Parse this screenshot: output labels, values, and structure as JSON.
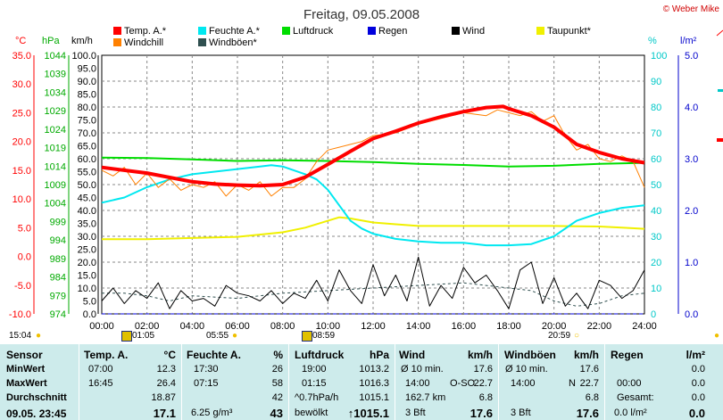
{
  "chart_data": {
    "type": "line",
    "title": "Freitag, 09.05.2008",
    "credit": "© Weber Mike",
    "legend": [
      {
        "name": "Temp. A.*",
        "color": "#ff0000"
      },
      {
        "name": "Feuchte A.*",
        "color": "#00e8f0"
      },
      {
        "name": "Luftdruck",
        "color": "#00dd00"
      },
      {
        "name": "Regen",
        "color": "#0000dd"
      },
      {
        "name": "Wind",
        "color": "#000000"
      },
      {
        "name": "Taupunkt*",
        "color": "#f0f000"
      },
      {
        "name": "Windchill",
        "color": "#ff8000"
      },
      {
        "name": "Windböen*",
        "color": "#2f4f4f"
      }
    ],
    "axes": {
      "temp": {
        "label": "°C",
        "range": [
          -10,
          35
        ],
        "ticks": [
          "35.0",
          "30.0",
          "25.0",
          "20.0",
          "15.0",
          "10.0",
          "5.0",
          "0.0",
          "-5.0",
          "-10.0"
        ],
        "color": "#ff0000"
      },
      "pressure": {
        "label": "hPa",
        "range": [
          974,
          1044
        ],
        "ticks": [
          "1044",
          "1039",
          "1034",
          "1029",
          "1024",
          "1019",
          "1014",
          "1009",
          "1004",
          "999",
          "994",
          "989",
          "984",
          "979",
          "974"
        ],
        "color": "#00aa00"
      },
      "wind": {
        "label": "km/h",
        "range": [
          0,
          100
        ],
        "ticks": [
          "100.0",
          "95.0",
          "90.0",
          "85.0",
          "80.0",
          "75.0",
          "70.0",
          "65.0",
          "60.0",
          "55.0",
          "50.0",
          "45.0",
          "40.0",
          "35.0",
          "30.0",
          "25.0",
          "20.0",
          "15.0",
          "10.0",
          "5.0",
          "0.0"
        ],
        "color": "#000000"
      },
      "humidity": {
        "label": "%",
        "range": [
          0,
          100
        ],
        "ticks": [
          "100",
          "90",
          "80",
          "70",
          "60",
          "50",
          "40",
          "30",
          "20",
          "10",
          "0"
        ],
        "color": "#00c8c8"
      },
      "rain": {
        "label": "l/m²",
        "range": [
          0,
          5
        ],
        "ticks": [
          "5.0",
          "4.0",
          "3.0",
          "2.0",
          "1.0",
          "0.0"
        ],
        "color": "#0000cc"
      },
      "x": {
        "range": [
          0,
          24
        ],
        "ticks": [
          "00:00",
          "02:00",
          "04:00",
          "06:00",
          "08:00",
          "10:00",
          "12:00",
          "14:00",
          "16:00",
          "18:00",
          "20:00",
          "22:00",
          "24:00"
        ]
      }
    },
    "series": [
      {
        "name": "Temp. A.*",
        "axis": "temp",
        "x": [
          0,
          2,
          4,
          5,
          6,
          7,
          8,
          9,
          10,
          11,
          12,
          13,
          14,
          15,
          16,
          17,
          17.75,
          18,
          19,
          20,
          21,
          22,
          23,
          24
        ],
        "values": [
          15.5,
          14.5,
          13.0,
          12.6,
          12.4,
          12.3,
          12.5,
          13.8,
          16.0,
          18.3,
          20.5,
          21.8,
          23.2,
          24.3,
          25.2,
          25.9,
          26.1,
          25.7,
          24.5,
          22.5,
          19.5,
          18.1,
          17.0,
          16.3
        ]
      },
      {
        "name": "Windchill",
        "axis": "temp",
        "x": [
          0,
          0.5,
          1,
          1.5,
          2,
          2.5,
          3,
          3.5,
          4,
          4.5,
          5,
          5.5,
          6,
          6.5,
          7,
          7.5,
          8,
          8.5,
          9,
          9.5,
          10,
          10.5,
          11,
          11.5,
          12,
          13,
          14,
          15,
          16,
          17,
          17.5,
          18,
          18.5,
          19,
          19.5,
          20,
          20.5,
          21,
          21.5,
          22,
          22.5,
          23,
          23.5,
          24
        ],
        "values": [
          15.0,
          14.0,
          15.5,
          12.5,
          14.5,
          12.0,
          13.5,
          11.5,
          12.5,
          12.0,
          13.0,
          10.5,
          12.5,
          11.5,
          13.0,
          10.5,
          12.0,
          12.0,
          13.5,
          16.5,
          18.5,
          19.0,
          19.5,
          20.0,
          21.0,
          21.5,
          23.0,
          24.0,
          25.0,
          24.5,
          25.5,
          25.0,
          24.5,
          25.2,
          23.5,
          24.5,
          21.0,
          18.5,
          19.5,
          17.0,
          16.5,
          17.5,
          16.5,
          12.0
        ]
      },
      {
        "name": "Feuchte A.*",
        "axis": "humidity",
        "x": [
          0,
          1,
          2,
          3,
          4,
          5,
          6,
          7,
          7.5,
          8,
          9,
          9.5,
          10,
          10.5,
          11,
          11.5,
          12,
          13,
          14,
          15,
          16,
          17,
          18,
          19,
          20,
          20.5,
          21,
          22,
          23,
          24
        ],
        "values": [
          43,
          45,
          49,
          52,
          54,
          55,
          56,
          57,
          57.5,
          57,
          54,
          52,
          48,
          42,
          36,
          33,
          31,
          29,
          28,
          27.5,
          27.5,
          26.5,
          26.5,
          27,
          30,
          33,
          36,
          39,
          41,
          42
        ]
      },
      {
        "name": "Luftdruck",
        "axis": "pressure",
        "x": [
          0,
          2,
          4,
          6,
          8,
          10,
          12,
          14,
          16,
          18,
          20,
          22,
          24
        ],
        "values": [
          1016.3,
          1016.2,
          1015.8,
          1015.4,
          1015.6,
          1015.4,
          1015.1,
          1014.6,
          1014.3,
          1013.9,
          1014.1,
          1014.6,
          1014.9
        ]
      },
      {
        "name": "Taupunkt*",
        "axis": "temp",
        "x": [
          0,
          2,
          4,
          6,
          8,
          9,
          10,
          10.5,
          11,
          12,
          13,
          14,
          16,
          18,
          20,
          22,
          23,
          24
        ],
        "values": [
          3.0,
          3.0,
          3.2,
          3.4,
          4.2,
          5.0,
          6.2,
          6.8,
          6.6,
          5.9,
          5.6,
          5.3,
          5.3,
          5.3,
          5.3,
          5.2,
          5.0,
          4.8
        ]
      },
      {
        "name": "Regen",
        "axis": "rain",
        "x": [
          0,
          24
        ],
        "values": [
          0.0,
          0.0
        ]
      },
      {
        "name": "Wind",
        "axis": "wind",
        "x": [
          0,
          0.5,
          1,
          1.5,
          2,
          2.5,
          3,
          3.5,
          4,
          4.5,
          5,
          5.5,
          6,
          6.5,
          7,
          7.5,
          8,
          8.5,
          9,
          9.5,
          10,
          10.5,
          11,
          11.5,
          12,
          12.5,
          13,
          13.5,
          14,
          14.5,
          15,
          15.5,
          16,
          16.5,
          17,
          17.5,
          18,
          18.5,
          19,
          19.5,
          20,
          20.5,
          21,
          21.5,
          22,
          22.5,
          23,
          23.5,
          24
        ],
        "values": [
          5,
          10,
          4,
          9,
          6,
          12,
          2,
          9,
          5,
          6,
          3,
          11,
          8,
          7,
          5,
          9,
          4,
          8,
          6,
          13,
          5,
          17,
          9,
          4,
          19,
          7,
          15,
          5,
          22,
          3,
          11,
          6,
          18,
          12,
          15,
          9,
          2,
          17,
          20,
          4,
          14,
          3,
          8,
          2,
          13,
          11,
          6,
          9,
          17
        ]
      },
      {
        "name": "Windböen*",
        "axis": "wind",
        "x": [
          0,
          1,
          2,
          3,
          4,
          6,
          8,
          10,
          12,
          14,
          16,
          18,
          19,
          20,
          21,
          22,
          23,
          24
        ],
        "values": [
          8,
          8,
          7,
          5,
          7,
          6,
          8,
          9,
          10,
          11,
          12,
          10,
          9,
          5,
          3,
          4,
          7,
          8
        ]
      }
    ],
    "grid": true,
    "legend_position": "top",
    "markers": {
      "sunrise": "05:55",
      "sunset": "20:59",
      "moonrise": "01:05",
      "moonset": "08:59",
      "left_time": "15:04"
    }
  },
  "table": {
    "columns": [
      {
        "header": "Sensor",
        "unit": "",
        "rows": [
          "MinWert",
          "MaxWert",
          "Durchschnitt",
          "09.05. 23:45"
        ]
      },
      {
        "header": "Temp. A.",
        "unit": "°C",
        "rows": [
          [
            "07:00",
            "12.3"
          ],
          [
            "16:45",
            "26.4"
          ],
          [
            "",
            "18.87"
          ],
          [
            "",
            "17.1"
          ]
        ]
      },
      {
        "header": "Feuchte A.",
        "unit": "%",
        "rows": [
          [
            "17:30",
            "26"
          ],
          [
            "07:15",
            "58"
          ],
          [
            "",
            "42"
          ],
          [
            "6.25 g/m³",
            "43"
          ]
        ]
      },
      {
        "header": "Luftdruck",
        "unit": "hPa",
        "rows": [
          [
            "19:00",
            "1013.2"
          ],
          [
            "01:15",
            "1016.3"
          ],
          [
            "^0.7hPa/h",
            "1015.1"
          ],
          [
            "bewölkt",
            "↑1015.1"
          ]
        ]
      },
      {
        "header": "Wind",
        "unit": "km/h",
        "rows": [
          [
            "Ø 10 min.",
            "17.6"
          ],
          [
            "14:00",
            "O-SO",
            "22.7"
          ],
          [
            "162.7 km",
            "6.8"
          ],
          [
            "3 Bft",
            "17.6"
          ]
        ]
      },
      {
        "header": "Windböen",
        "unit": "km/h",
        "rows": [
          [
            "Ø 10 min.",
            "17.6"
          ],
          [
            "14:00",
            "N",
            "22.7"
          ],
          [
            "",
            "6.8"
          ],
          [
            "3 Bft",
            "17.6"
          ]
        ]
      },
      {
        "header": "Regen",
        "unit": "l/m²",
        "rows": [
          [
            "",
            "0.0"
          ],
          [
            "00:00",
            "0.0"
          ],
          [
            "Gesamt:",
            "0.0"
          ],
          [
            "0.0 l/m²",
            "0.0"
          ]
        ]
      }
    ]
  }
}
